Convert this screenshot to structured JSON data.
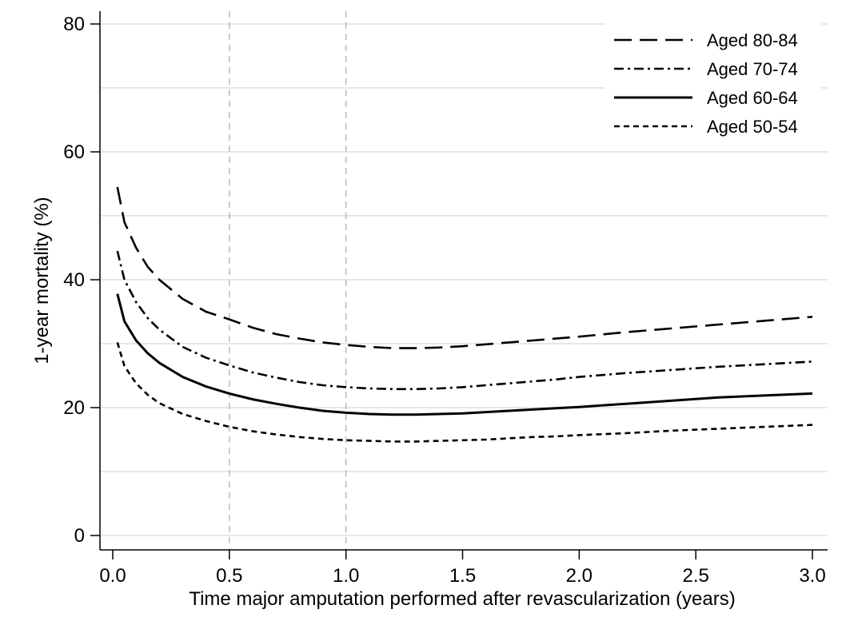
{
  "chart_data": {
    "type": "line",
    "title": "",
    "xlabel": "Time major amputation performed after revascularization (years)",
    "ylabel": "1-year mortality (%)",
    "xlim": [
      0.0,
      3.0
    ],
    "ylim": [
      0,
      80
    ],
    "x_ticks": [
      0.0,
      0.5,
      1.0,
      1.5,
      2.0,
      2.5,
      3.0
    ],
    "x_tick_labels": [
      "0.0",
      "0.5",
      "1.0",
      "1.5",
      "2.0",
      "2.5",
      "3.0"
    ],
    "y_ticks": [
      0,
      20,
      40,
      60,
      80
    ],
    "y_tick_labels": [
      "0",
      "20",
      "40",
      "60",
      "80"
    ],
    "y_minor_gridlines": [
      10,
      30,
      50,
      70
    ],
    "reference_lines_x": [
      0.5,
      1.0
    ],
    "grid": true,
    "legend_position": "top-right",
    "x": [
      0.02,
      0.05,
      0.1,
      0.15,
      0.2,
      0.3,
      0.4,
      0.5,
      0.6,
      0.7,
      0.8,
      0.9,
      1.0,
      1.1,
      1.2,
      1.3,
      1.4,
      1.5,
      1.6,
      1.7,
      1.8,
      1.9,
      2.0,
      2.2,
      2.4,
      2.6,
      2.8,
      3.0
    ],
    "series": [
      {
        "name": "Aged 80-84",
        "style": "dashed",
        "values": [
          54.5,
          49.0,
          45.0,
          42.0,
          40.0,
          37.0,
          35.0,
          33.8,
          32.5,
          31.5,
          30.8,
          30.2,
          29.8,
          29.5,
          29.3,
          29.3,
          29.4,
          29.6,
          29.9,
          30.2,
          30.5,
          30.8,
          31.1,
          31.8,
          32.4,
          33.0,
          33.6,
          34.2
        ]
      },
      {
        "name": "Aged 70-74",
        "style": "dash-dot",
        "values": [
          44.5,
          40.0,
          36.5,
          34.0,
          32.2,
          29.5,
          27.8,
          26.6,
          25.5,
          24.7,
          24.0,
          23.5,
          23.2,
          23.0,
          22.9,
          22.9,
          23.0,
          23.2,
          23.5,
          23.8,
          24.1,
          24.4,
          24.8,
          25.4,
          25.9,
          26.4,
          26.8,
          27.2
        ]
      },
      {
        "name": "Aged 60-64",
        "style": "solid",
        "values": [
          37.8,
          33.5,
          30.5,
          28.5,
          27.0,
          24.8,
          23.3,
          22.2,
          21.3,
          20.6,
          20.0,
          19.5,
          19.2,
          19.0,
          18.9,
          18.9,
          19.0,
          19.1,
          19.3,
          19.5,
          19.7,
          19.9,
          20.1,
          20.6,
          21.1,
          21.6,
          21.9,
          22.2
        ]
      },
      {
        "name": "Aged 50-54",
        "style": "dotted",
        "values": [
          30.2,
          26.5,
          23.8,
          22.0,
          20.7,
          19.0,
          17.9,
          17.0,
          16.3,
          15.8,
          15.4,
          15.1,
          14.9,
          14.8,
          14.7,
          14.7,
          14.8,
          14.9,
          15.0,
          15.2,
          15.4,
          15.5,
          15.7,
          16.0,
          16.4,
          16.7,
          17.0,
          17.3
        ]
      }
    ],
    "colors": {
      "line": "#000000",
      "major_grid": "#d9e2e6",
      "reference_line": "#a9a9a9",
      "axis": "#000000"
    }
  }
}
